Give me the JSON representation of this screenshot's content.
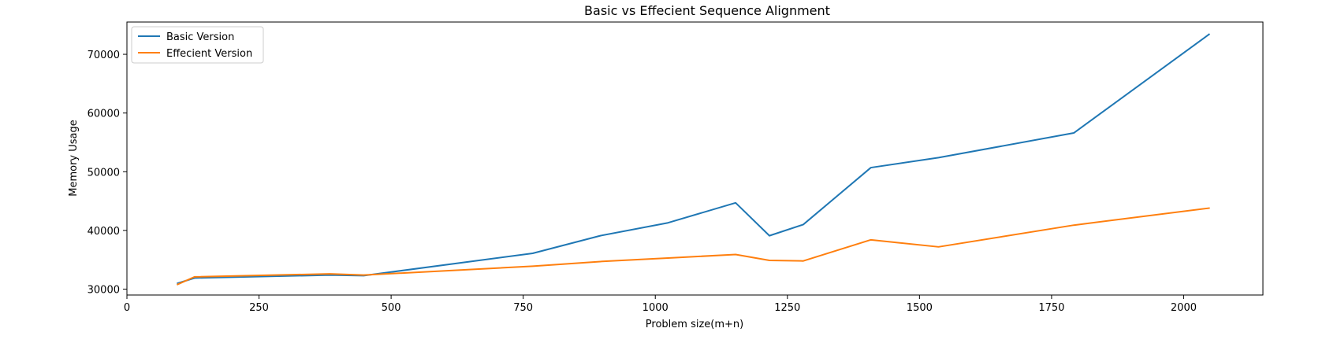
{
  "chart_data": {
    "type": "line",
    "title": "Basic vs Effecient Sequence Alignment",
    "xlabel": "Problem size(m+n)",
    "ylabel": "Memory  Usage",
    "xlim": [
      0,
      2150
    ],
    "ylim": [
      29000,
      75500
    ],
    "xticks": [
      0,
      250,
      500,
      750,
      1000,
      1250,
      1500,
      1750,
      2000
    ],
    "yticks": [
      30000,
      40000,
      50000,
      60000,
      70000
    ],
    "grid": false,
    "legend_position": "top-left",
    "series": [
      {
        "name": "Basic Version",
        "color": "#1f77b4",
        "x": [
          96,
          128,
          384,
          448,
          768,
          896,
          1024,
          1152,
          1216,
          1280,
          1408,
          1536,
          1792,
          2048
        ],
        "y": [
          31000,
          31900,
          32400,
          32300,
          36100,
          39100,
          41300,
          44700,
          39100,
          41000,
          50700,
          52400,
          56600,
          73400
        ]
      },
      {
        "name": "Effecient Version",
        "color": "#ff7f0e",
        "x": [
          96,
          128,
          384,
          448,
          768,
          896,
          1024,
          1152,
          1216,
          1280,
          1408,
          1536,
          1792,
          2048
        ],
        "y": [
          30800,
          32100,
          32600,
          32400,
          33900,
          34700,
          35300,
          35900,
          34900,
          34800,
          38400,
          37200,
          40900,
          43800
        ]
      }
    ]
  }
}
